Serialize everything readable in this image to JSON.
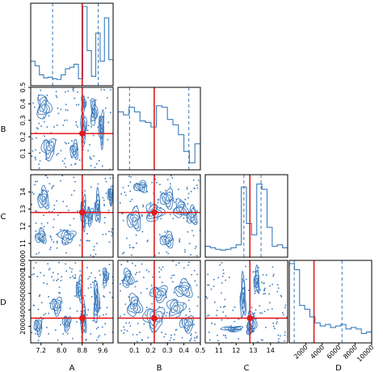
{
  "chart_data": {
    "type": "corner",
    "params": [
      "A",
      "B",
      "C",
      "D"
    ],
    "colors": {
      "contour": "#3b7bbd",
      "truth": "#e31a1c",
      "axis": "#000000"
    },
    "ranges": {
      "A": [
        6.8,
        10.0
      ],
      "B": [
        0.0,
        0.5
      ],
      "C": [
        10.2,
        15.0
      ],
      "D": [
        0,
        10000
      ]
    },
    "truths": {
      "A": 8.8,
      "B": 0.22,
      "C": 12.8,
      "D": 3000
    },
    "quantiles": {
      "A": [
        7.65,
        9.42
      ],
      "B": [
        0.07,
        0.43
      ],
      "C": [
        12.45,
        13.45
      ],
      "D": [
        600,
        6400
      ]
    },
    "ticks": {
      "A": [
        "7.2",
        "8.0",
        "8.8",
        "9.6"
      ],
      "B": [
        "0.1",
        "0.2",
        "0.3",
        "0.4",
        "0.5"
      ],
      "C": [
        "11",
        "12",
        "13",
        "14"
      ],
      "D": [
        "2000",
        "4000",
        "6000",
        "8000",
        "10000"
      ]
    },
    "tick_values": {
      "A": [
        7.2,
        8.0,
        8.8,
        9.6
      ],
      "B": [
        0.1,
        0.2,
        0.3,
        0.4,
        0.5
      ],
      "C": [
        11,
        12,
        13,
        14
      ],
      "D": [
        2000,
        4000,
        6000,
        8000,
        10000
      ]
    },
    "row_ticks": {
      "B": [
        "0.1",
        "0.2",
        "0.3",
        "0.4",
        "0.5"
      ],
      "C": [
        "11",
        "12",
        "13",
        "14"
      ],
      "D": [
        "2000",
        "4000",
        "6000",
        "8000",
        "10000"
      ]
    },
    "histograms": {
      "A": [
        0.28,
        0.22,
        0.1,
        0.06,
        0.07,
        0.05,
        0.04,
        0.1,
        0.18,
        0.2,
        0.24,
        0.05,
        1.0,
        0.42,
        0.08,
        0.65,
        0.28,
        0.85,
        0.3
      ],
      "B": [
        0.72,
        0.68,
        0.78,
        0.72,
        0.6,
        0.58,
        0.52,
        0.8,
        0.78,
        0.62,
        0.55,
        0.42,
        0.2,
        0.05,
        0.3
      ],
      "C": [
        0.1,
        0.08,
        0.06,
        0.05,
        0.06,
        0.08,
        0.12,
        0.88,
        0.4,
        0.25,
        0.92,
        0.85,
        0.35,
        0.1,
        0.12,
        0.08
      ],
      "D": [
        1.0,
        0.92,
        0.45,
        0.4,
        0.3,
        0.22,
        0.18,
        0.2,
        0.16,
        0.18,
        0.2,
        0.14,
        0.16,
        0.14,
        0.08,
        0.1
      ]
    },
    "clusters": {
      "B_A": [
        [
          8.85,
          0.25,
          0.1,
          0.1
        ],
        [
          9.55,
          0.25,
          0.1,
          0.1
        ],
        [
          9.25,
          0.35,
          0.12,
          0.08
        ],
        [
          8.85,
          0.4,
          0.08,
          0.05
        ],
        [
          7.3,
          0.38,
          0.25,
          0.07
        ],
        [
          7.5,
          0.13,
          0.25,
          0.06
        ],
        [
          8.5,
          0.12,
          0.15,
          0.05
        ]
      ],
      "C_A": [
        [
          8.85,
          12.8,
          0.1,
          0.9
        ],
        [
          9.4,
          13.1,
          0.1,
          0.9
        ],
        [
          9.1,
          12.6,
          0.12,
          0.5
        ],
        [
          8.2,
          11.4,
          0.3,
          0.4
        ],
        [
          7.2,
          11.4,
          0.2,
          0.4
        ],
        [
          7.3,
          13.6,
          0.2,
          0.6
        ],
        [
          9.9,
          13.8,
          0.1,
          0.5
        ]
      ],
      "D_A": [
        [
          8.85,
          3000,
          0.1,
          2000
        ],
        [
          9.35,
          5000,
          0.1,
          2500
        ],
        [
          8.7,
          6500,
          0.12,
          1400
        ],
        [
          7.1,
          2000,
          0.15,
          1000
        ],
        [
          7.8,
          4500,
          0.2,
          1000
        ],
        [
          9.7,
          8000,
          0.1,
          1100
        ],
        [
          8.2,
          2400,
          0.15,
          900
        ]
      ],
      "C_B": [
        [
          0.22,
          12.8,
          0.05,
          0.5
        ],
        [
          0.1,
          12.4,
          0.04,
          0.6
        ],
        [
          0.38,
          13.0,
          0.04,
          0.5
        ],
        [
          0.3,
          13.6,
          0.04,
          0.5
        ],
        [
          0.45,
          12.6,
          0.03,
          0.5
        ],
        [
          0.3,
          11.2,
          0.04,
          0.4
        ],
        [
          0.14,
          14.3,
          0.04,
          0.3
        ]
      ],
      "D_B": [
        [
          0.22,
          3000,
          0.06,
          1300
        ],
        [
          0.1,
          4500,
          0.04,
          1300
        ],
        [
          0.35,
          4200,
          0.05,
          1100
        ],
        [
          0.4,
          6500,
          0.05,
          1000
        ],
        [
          0.25,
          6000,
          0.05,
          900
        ],
        [
          0.06,
          7800,
          0.03,
          1100
        ],
        [
          0.42,
          2300,
          0.04,
          900
        ]
      ],
      "D_C": [
        [
          12.9,
          2500,
          0.25,
          1200
        ],
        [
          12.4,
          5500,
          0.15,
          2500
        ],
        [
          13.2,
          7500,
          0.15,
          1500
        ],
        [
          12.8,
          1600,
          0.2,
          600
        ],
        [
          11.8,
          1700,
          0.6,
          300
        ]
      ]
    }
  }
}
